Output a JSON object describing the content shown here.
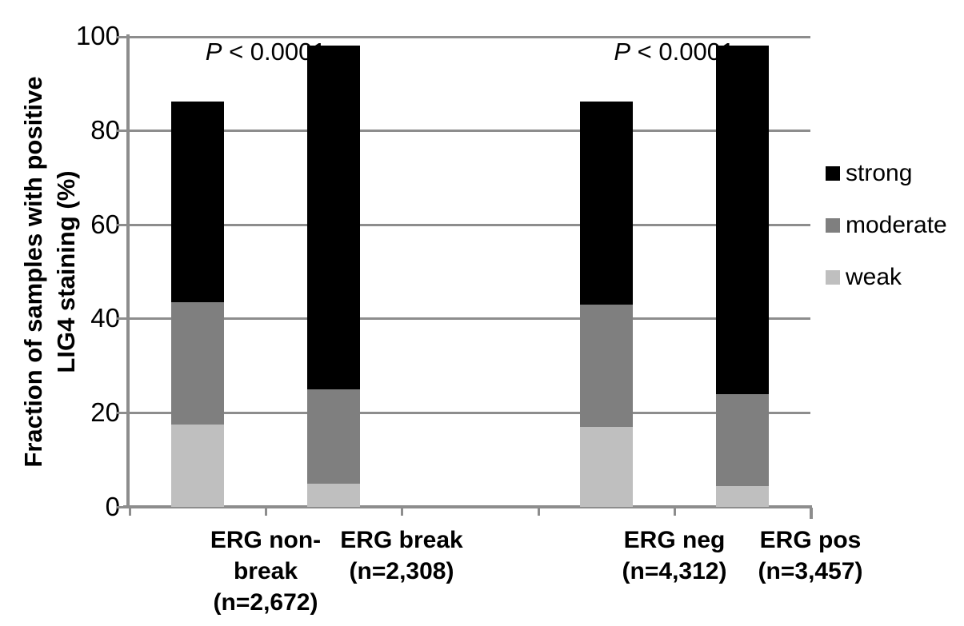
{
  "chart_data": {
    "type": "bar",
    "stacked": true,
    "title": "",
    "ylabel": "Fraction of samples with positive LIG4 staining (%)",
    "ylabel_lines": [
      "Fraction of samples with positive",
      "LIG4 staining (%)"
    ],
    "ylim": [
      0,
      100
    ],
    "yticks": [
      0,
      20,
      40,
      60,
      80,
      100
    ],
    "grid": true,
    "legend_position": "right",
    "categories": [
      "ERG non-\nbreak\n(n=2,672)",
      "ERG break\n(n=2,308)",
      "ERG neg\n(n=4,312)",
      "ERG pos\n(n=3,457)"
    ],
    "series": [
      {
        "name": "weak",
        "color": "#bfbfbf",
        "values": [
          17.5,
          5,
          17,
          4.5
        ]
      },
      {
        "name": "moderate",
        "color": "#7f7f7f",
        "values": [
          26,
          20,
          26,
          19.5
        ]
      },
      {
        "name": "strong",
        "color": "#000000",
        "values": [
          42.5,
          73,
          43,
          74
        ]
      }
    ],
    "totals": [
      86,
      98,
      86,
      98
    ],
    "annotations": [
      {
        "variable": "P",
        "rest": "< 0.0001"
      },
      {
        "variable": "P",
        "rest": "< 0.0001"
      }
    ]
  }
}
